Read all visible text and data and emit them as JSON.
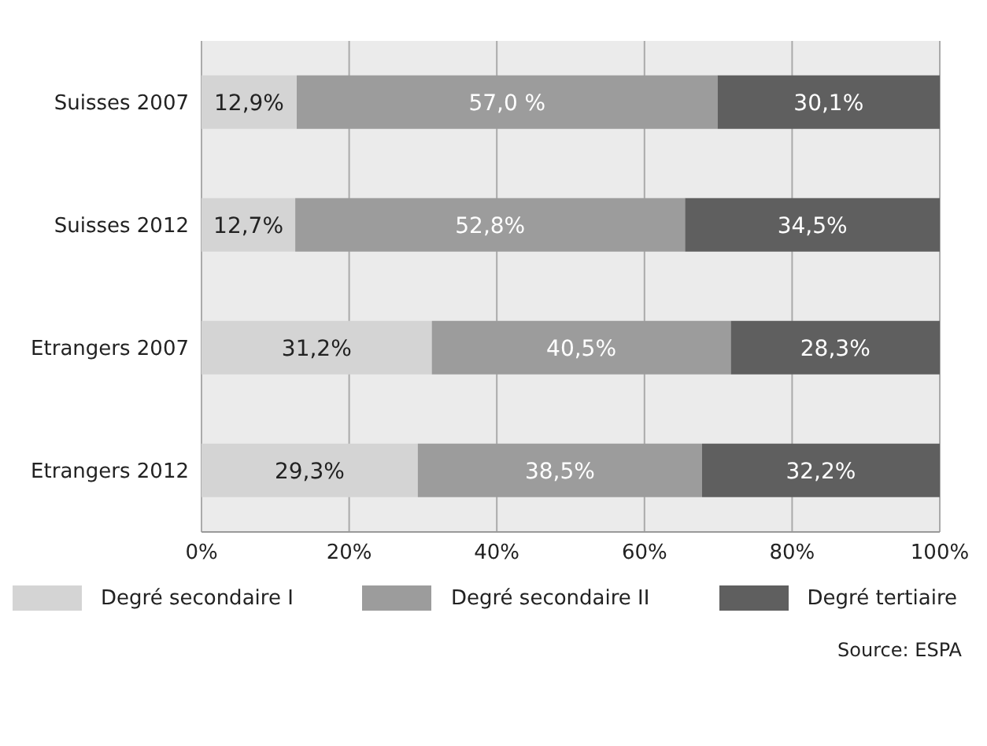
{
  "chart_data": {
    "type": "bar",
    "orientation": "horizontal",
    "stacked": true,
    "categories": [
      "Suisses 2007",
      "Suisses 2012",
      "Etrangers 2007",
      "Etrangers 2012"
    ],
    "series": [
      {
        "name": "Degré secondaire I",
        "color": "#d4d4d4",
        "values": [
          12.9,
          12.7,
          31.2,
          29.3
        ],
        "value_labels": [
          "12,9%",
          "12,7%",
          "31,2%",
          "29,3%"
        ]
      },
      {
        "name": "Degré secondaire II",
        "color": "#9c9c9c",
        "values": [
          57.0,
          52.8,
          40.5,
          38.5
        ],
        "value_labels": [
          "57,0 %",
          "52,8%",
          "40,5%",
          "38,5%"
        ]
      },
      {
        "name": "Degré tertiaire",
        "color": "#5f5f5f",
        "values": [
          30.1,
          34.5,
          28.3,
          32.2
        ],
        "value_labels": [
          "30,1%",
          "34,5%",
          "28,3%",
          "32,2%"
        ]
      }
    ],
    "xlim": [
      0,
      100
    ],
    "xticks": [
      {
        "value": 0,
        "label": "0%"
      },
      {
        "value": 20,
        "label": "20%"
      },
      {
        "value": 40,
        "label": "40%"
      },
      {
        "value": 60,
        "label": "60%"
      },
      {
        "value": 80,
        "label": "80%"
      },
      {
        "value": 100,
        "label": "100%"
      }
    ],
    "grid": "x",
    "legend": "bottom",
    "annotations": [
      "Source: ESPA"
    ]
  }
}
